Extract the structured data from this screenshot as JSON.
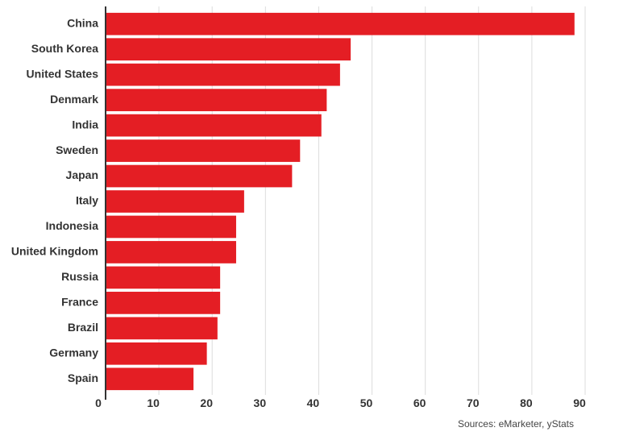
{
  "chart_data": {
    "type": "bar",
    "orientation": "horizontal",
    "categories": [
      "China",
      "South Korea",
      "United States",
      "Denmark",
      "India",
      "Sweden",
      "Japan",
      "Italy",
      "Indonesia",
      "United Kingdom",
      "Russia",
      "France",
      "Brazil",
      "Germany",
      "Spain"
    ],
    "values": [
      88,
      46,
      44,
      41.5,
      40.5,
      36.5,
      35,
      26,
      24.5,
      24.5,
      21.5,
      21.5,
      21,
      19,
      16.5
    ],
    "xlim": [
      0,
      90
    ],
    "x_ticks": [
      0,
      10,
      20,
      30,
      40,
      50,
      60,
      70,
      80,
      90
    ],
    "grid": true,
    "title": "",
    "xlabel": "",
    "ylabel": "",
    "colors": {
      "bar": "#e41e24",
      "grid": "#dcdcdc",
      "axis": "#333333",
      "text": "#333333"
    }
  },
  "source": "Sources: eMarketer, yStats"
}
